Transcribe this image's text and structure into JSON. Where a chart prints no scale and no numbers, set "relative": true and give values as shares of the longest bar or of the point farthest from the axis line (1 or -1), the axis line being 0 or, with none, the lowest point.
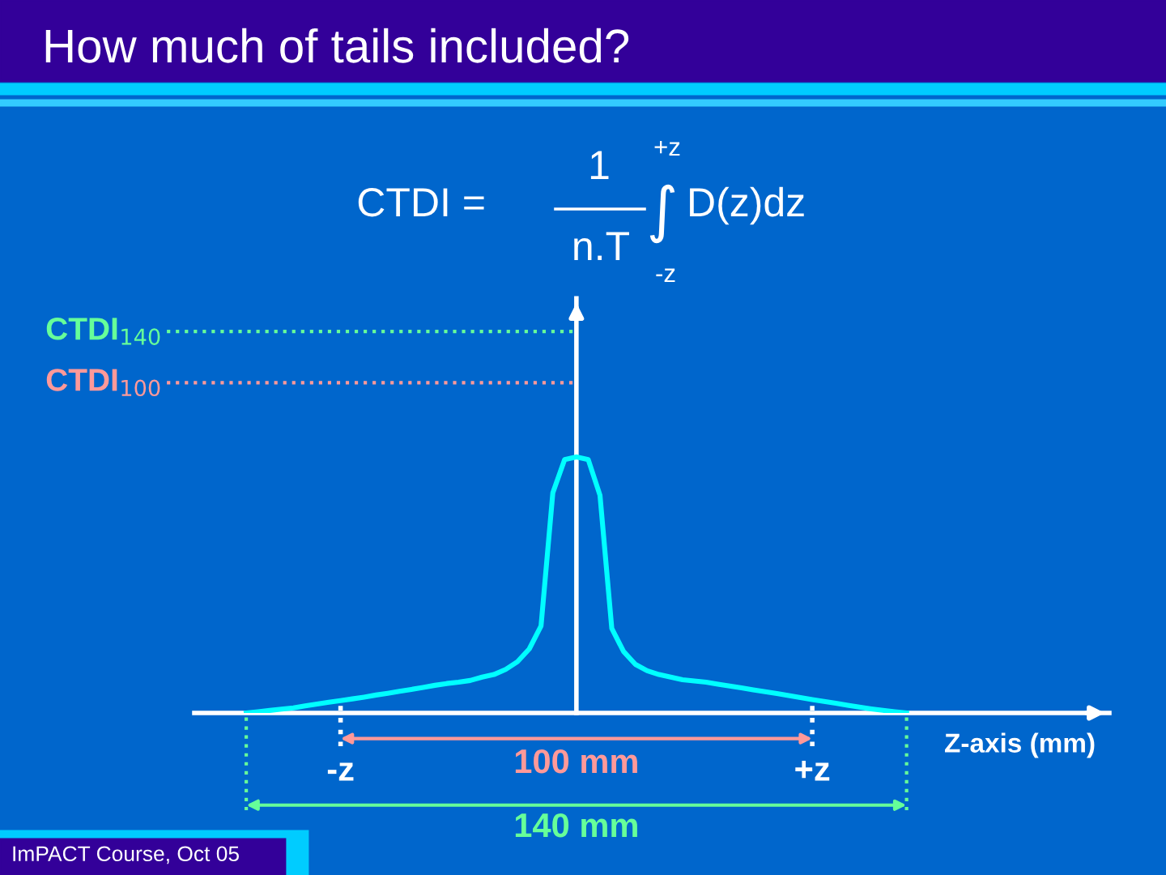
{
  "chart_data": {
    "type": "line",
    "title": "How much of tails included?",
    "relative": true,
    "categories": [
      null,
      null,
      null,
      null,
      null,
      null,
      null,
      null,
      null,
      null,
      null,
      null,
      null,
      null,
      null,
      null,
      null,
      null,
      null,
      null,
      null,
      null,
      null,
      null,
      null,
      null,
      null,
      null,
      null,
      null,
      null,
      null,
      null,
      null,
      null,
      null,
      null,
      null,
      null,
      null,
      null,
      null,
      null,
      null,
      null,
      null,
      null,
      null,
      null,
      null,
      null,
      null,
      null,
      null,
      null,
      null,
      null
    ],
    "series": [
      {
        "color": "#00ffff",
        "values": [
          0,
          0.005,
          0.01,
          0.015,
          0.02,
          0.028,
          0.035,
          0.042,
          0.048,
          0.055,
          0.062,
          0.07,
          0.077,
          0.085,
          0.092,
          0.1,
          0.108,
          0.115,
          0.12,
          0.127,
          0.14,
          0.15,
          0.17,
          0.2,
          0.25,
          0.34,
          0.86,
          0.99,
          1,
          0.99,
          0.85,
          0.33,
          0.24,
          0.19,
          0.165,
          0.15,
          0.14,
          0.13,
          0.125,
          0.12,
          0.112,
          0.105,
          0.098,
          0.09,
          0.083,
          0.076,
          0.068,
          0.06,
          0.052,
          0.045,
          0.038,
          0.03,
          0.023,
          0.016,
          0.01,
          0.005,
          0
        ]
      }
    ],
    "ref_lines": [
      {
        "axis": "y",
        "value": 1.49,
        "label": "CTDI$_{140}$",
        "color": "#66ff99",
        "line_style": "dotted"
      },
      {
        "axis": "y",
        "value": 1.29,
        "label": "CTDI$_{100}$",
        "color": "#ff9999",
        "line_style": "dotted"
      }
    ],
    "annotations": [
      "100 mm",
      "140 mm",
      "-z",
      "+z",
      "CTDI =",
      "1",
      "n.T",
      "+z",
      "-z",
      "∫",
      "D(z)dz",
      "ImPACT Course, Oct 05",
      "Z-axis (mm)"
    ],
    "marker": "none",
    "line_style": "solid"
  }
}
